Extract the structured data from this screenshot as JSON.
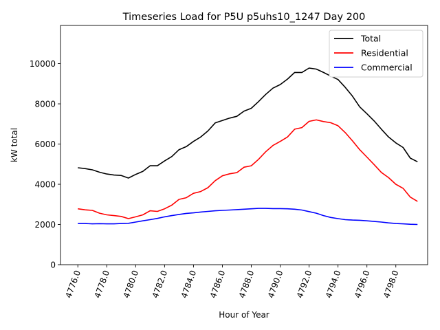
{
  "chart_data": {
    "type": "line",
    "title": "Timeseries Load for P5U p5uhs10_1247  Day 200",
    "xlabel": "Hour of Year",
    "ylabel": "kW total",
    "xlim": [
      4774.8,
      4800.2
    ],
    "ylim": [
      0,
      11900
    ],
    "xticks": [
      4776,
      4778,
      4780,
      4782,
      4784,
      4786,
      4788,
      4790,
      4792,
      4794,
      4796,
      4798
    ],
    "xtick_labels": [
      "4776.0",
      "4778.0",
      "4780.0",
      "4782.0",
      "4784.0",
      "4786.0",
      "4788.0",
      "4790.0",
      "4792.0",
      "4794.0",
      "4796.0",
      "4798.0"
    ],
    "yticks": [
      0,
      2000,
      4000,
      6000,
      8000,
      10000
    ],
    "ytick_labels": [
      "0",
      "2000",
      "4000",
      "6000",
      "8000",
      "10000"
    ],
    "legend_position": "top-right",
    "x": [
      4776,
      4776.5,
      4777,
      4777.5,
      4778,
      4778.5,
      4779,
      4779.5,
      4780,
      4780.5,
      4781,
      4781.5,
      4782,
      4782.5,
      4783,
      4783.5,
      4784,
      4784.5,
      4785,
      4785.5,
      4786,
      4786.5,
      4787,
      4787.5,
      4788,
      4788.5,
      4789,
      4789.5,
      4790,
      4790.5,
      4791,
      4791.5,
      4792,
      4792.5,
      4793,
      4793.5,
      4794,
      4794.5,
      4795,
      4795.5,
      4796,
      4796.5,
      4797,
      4797.5,
      4798,
      4798.5,
      4799,
      4799.5
    ],
    "series": [
      {
        "name": "Total",
        "color": "#000000",
        "values": [
          4820,
          4780,
          4720,
          4600,
          4510,
          4460,
          4440,
          4310,
          4490,
          4640,
          4920,
          4920,
          5160,
          5380,
          5720,
          5870,
          6130,
          6350,
          6650,
          7050,
          7170,
          7290,
          7380,
          7640,
          7780,
          8110,
          8470,
          8780,
          8960,
          9230,
          9560,
          9560,
          9780,
          9730,
          9560,
          9380,
          9210,
          8820,
          8380,
          7850,
          7510,
          7150,
          6740,
          6350,
          6060,
          5830,
          5300,
          5120
        ]
      },
      {
        "name": "Residential",
        "color": "#ff0000",
        "values": [
          2780,
          2730,
          2700,
          2560,
          2480,
          2440,
          2400,
          2290,
          2380,
          2480,
          2680,
          2650,
          2780,
          2960,
          3250,
          3330,
          3550,
          3640,
          3830,
          4180,
          4420,
          4520,
          4580,
          4850,
          4920,
          5240,
          5620,
          5930,
          6130,
          6350,
          6740,
          6820,
          7130,
          7200,
          7120,
          7060,
          6910,
          6570,
          6160,
          5720,
          5350,
          4980,
          4590,
          4330,
          4000,
          3800,
          3360,
          3150
        ]
      },
      {
        "name": "Commercial",
        "color": "#0000ff",
        "values": [
          2050,
          2050,
          2030,
          2040,
          2030,
          2030,
          2050,
          2060,
          2120,
          2180,
          2240,
          2300,
          2380,
          2440,
          2500,
          2550,
          2580,
          2620,
          2650,
          2680,
          2700,
          2720,
          2740,
          2760,
          2780,
          2800,
          2800,
          2790,
          2790,
          2780,
          2760,
          2720,
          2640,
          2560,
          2440,
          2350,
          2290,
          2240,
          2220,
          2210,
          2180,
          2150,
          2120,
          2080,
          2050,
          2030,
          2010,
          2000
        ]
      }
    ]
  }
}
